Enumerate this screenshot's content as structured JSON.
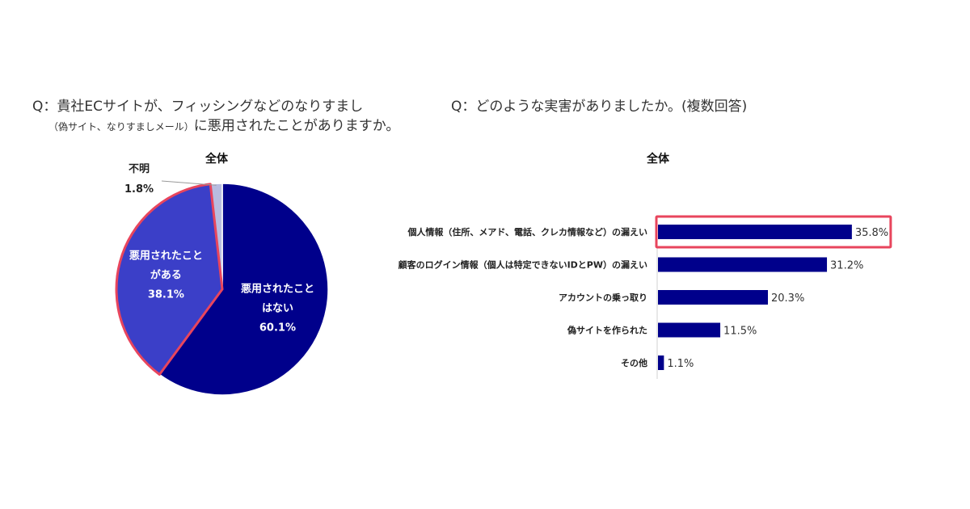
{
  "questions": {
    "q1_line1": "Q：貴社ECサイトが、フィッシングなどのなりすまし",
    "q1_line2_small": "（偽サイト、なりすましメール）",
    "q1_line2_main": "に悪用されたことがありますか。",
    "q2": "Q：どのような実害がありましたか。(複数回答)"
  },
  "chart_data": [
    {
      "type": "pie",
      "subtitle": "全体",
      "slices": [
        {
          "label_lines": [
            "悪用されたこと",
            "はない"
          ],
          "value": 60.1,
          "value_label": "60.1%",
          "color": "#00008b"
        },
        {
          "label_lines": [
            "悪用されたこと",
            "がある"
          ],
          "value": 38.1,
          "value_label": "38.1%",
          "color": "#3b3fc8",
          "highlight": true
        },
        {
          "label_lines": [
            "不明"
          ],
          "value": 1.8,
          "value_label": "1.8%",
          "color": "#b8bce0"
        }
      ],
      "highlight_color": "#e8455d"
    },
    {
      "type": "bar",
      "orientation": "horizontal",
      "subtitle": "全体",
      "categories": [
        "個人情報（住所、メアド、電話、クレカ情報など）の漏えい",
        "顧客のログイン情報（個人は特定できないIDとPW）の漏えい",
        "アカウントの乗っ取り",
        "偽サイトを作られた",
        "その他"
      ],
      "values": [
        35.8,
        31.2,
        20.3,
        11.5,
        1.1
      ],
      "value_labels": [
        "35.8%",
        "31.2%",
        "20.3%",
        "11.5%",
        "1.1%"
      ],
      "bar_color": "#00008b",
      "highlight_index": 0,
      "highlight_color": "#e8455d"
    }
  ]
}
